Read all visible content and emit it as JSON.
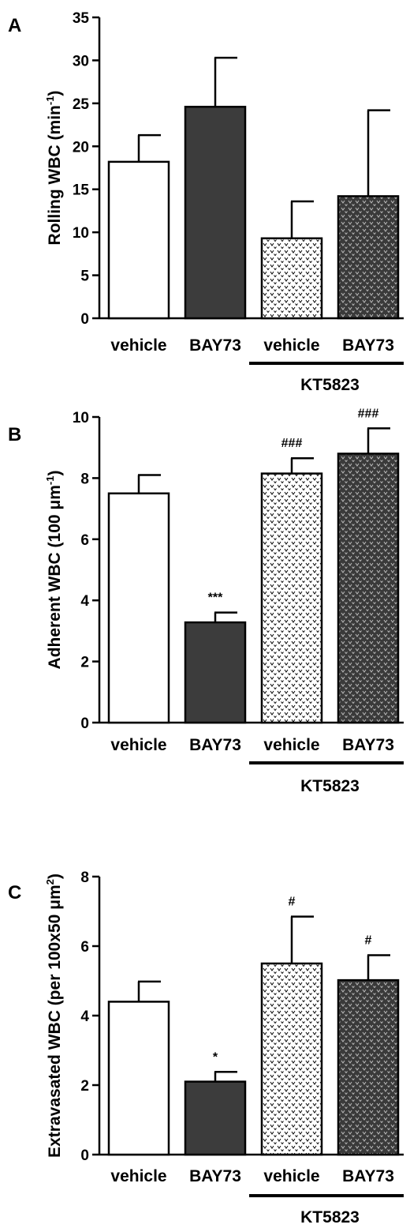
{
  "colors": {
    "vehicle": "#ffffff",
    "bay73": "#3c3c3c",
    "kt_vehicle": "#f2f2f2",
    "kt_bay73": "#3c3c3c",
    "stroke": "#000000"
  },
  "chart_data": [
    {
      "type": "bar",
      "panel": "A",
      "ylabel": "Rolling WBC (min",
      "ylabel_sup": "-1",
      "ylabel_tail": ")",
      "ylim": [
        0,
        35
      ],
      "yticks": [
        0,
        5,
        10,
        15,
        20,
        25,
        30,
        35
      ],
      "categories": [
        "vehicle",
        "BAY73",
        "vehicle",
        "BAY73"
      ],
      "values": [
        18.2,
        24.6,
        9.3,
        14.2
      ],
      "errors": [
        3.1,
        5.7,
        4.3,
        10.0
      ],
      "annotations": [
        "",
        "",
        "",
        ""
      ],
      "group_label": "KT5823"
    },
    {
      "type": "bar",
      "panel": "B",
      "ylabel": "Adherent WBC (100 μm",
      "ylabel_sup": "-1",
      "ylabel_tail": ")",
      "ylim": [
        0,
        10
      ],
      "yticks": [
        0,
        2,
        4,
        6,
        8,
        10
      ],
      "categories": [
        "vehicle",
        "BAY73",
        "vehicle",
        "BAY73"
      ],
      "values": [
        7.5,
        3.28,
        8.15,
        8.8
      ],
      "errors": [
        0.6,
        0.32,
        0.5,
        0.83
      ],
      "annotations": [
        "",
        "***",
        "###",
        "###"
      ],
      "group_label": "KT5823"
    },
    {
      "type": "bar",
      "panel": "C",
      "ylabel": "Extravasated WBC (per 100x50 μm",
      "ylabel_sup": "2",
      "ylabel_tail": ")",
      "ylim": [
        0,
        8
      ],
      "yticks": [
        0,
        2,
        4,
        6,
        8
      ],
      "categories": [
        "vehicle",
        "BAY73",
        "vehicle",
        "BAY73"
      ],
      "values": [
        4.4,
        2.1,
        5.5,
        5.02
      ],
      "errors": [
        0.58,
        0.28,
        1.35,
        0.72
      ],
      "annotations": [
        "",
        "*",
        "#",
        "#"
      ],
      "group_label": "KT5823"
    }
  ]
}
